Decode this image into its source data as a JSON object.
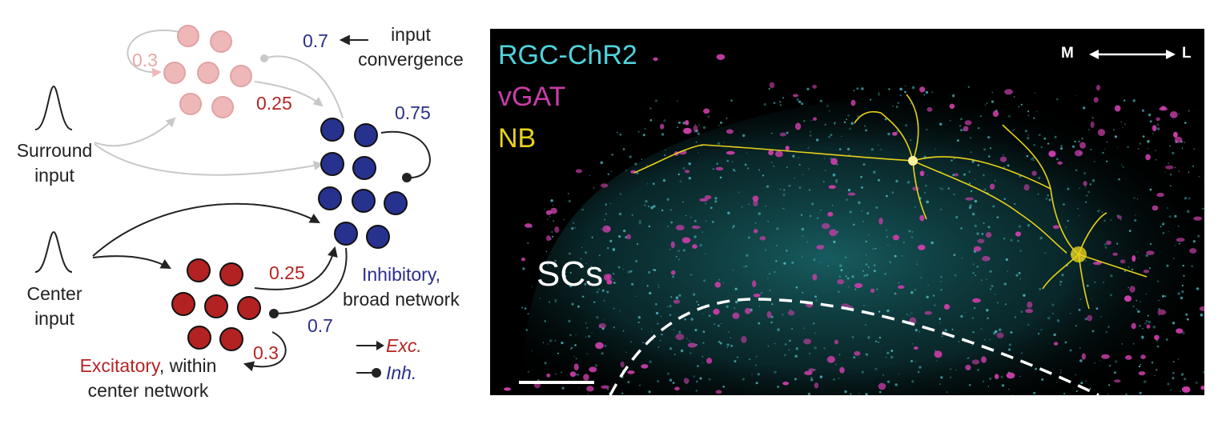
{
  "diagram": {
    "surround_input": [
      "Surround",
      "input"
    ],
    "center_input": [
      "Center",
      "input"
    ],
    "input_convergence_value": "0.7",
    "input_convergence_label": [
      "input",
      "convergence"
    ],
    "surround_recurrent": "0.3",
    "surround_to_inhibitory": "0.25",
    "inhibitory_recurrent": "0.75",
    "excitatory_to_inhibitory": "0.25",
    "inhibitory_to_excitatory": "0.7",
    "excitatory_recurrent": "0.3",
    "inhibitory_label": [
      "Inhibitory,",
      "broad network"
    ],
    "excitatory_label_colored": "Excitatory",
    "excitatory_label_rest": ", within",
    "excitatory_label_line2": "center network",
    "legend_exc": "Exc.",
    "legend_inh": "Inh."
  },
  "micrograph": {
    "channels": [
      "RGC-ChR2",
      "vGAT",
      "NB"
    ],
    "channel_colors": [
      "#4fd3dc",
      "#c83ea8",
      "#e8d21a"
    ],
    "axis_medial": "M",
    "axis_lateral": "L",
    "region_label": "SCs"
  },
  "colors": {
    "inhibitory": "#27328e",
    "excitatory": "#b22222",
    "surround": "#eeb8b8",
    "arrow_dark": "#222222",
    "arrow_gray": "#c8c8c8"
  }
}
